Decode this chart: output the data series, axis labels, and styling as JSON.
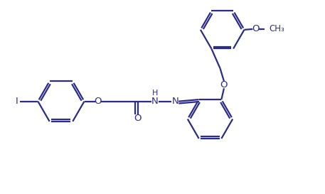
{
  "bg_color": "#ffffff",
  "line_color": "#2b2b8b",
  "text_color": "#2b2b8b",
  "line_width": 1.6,
  "font_size": 9.5,
  "figsize": [
    4.57,
    2.73
  ],
  "dpi": 100,
  "xlim": [
    0,
    10
  ],
  "ylim": [
    0,
    5.97
  ]
}
